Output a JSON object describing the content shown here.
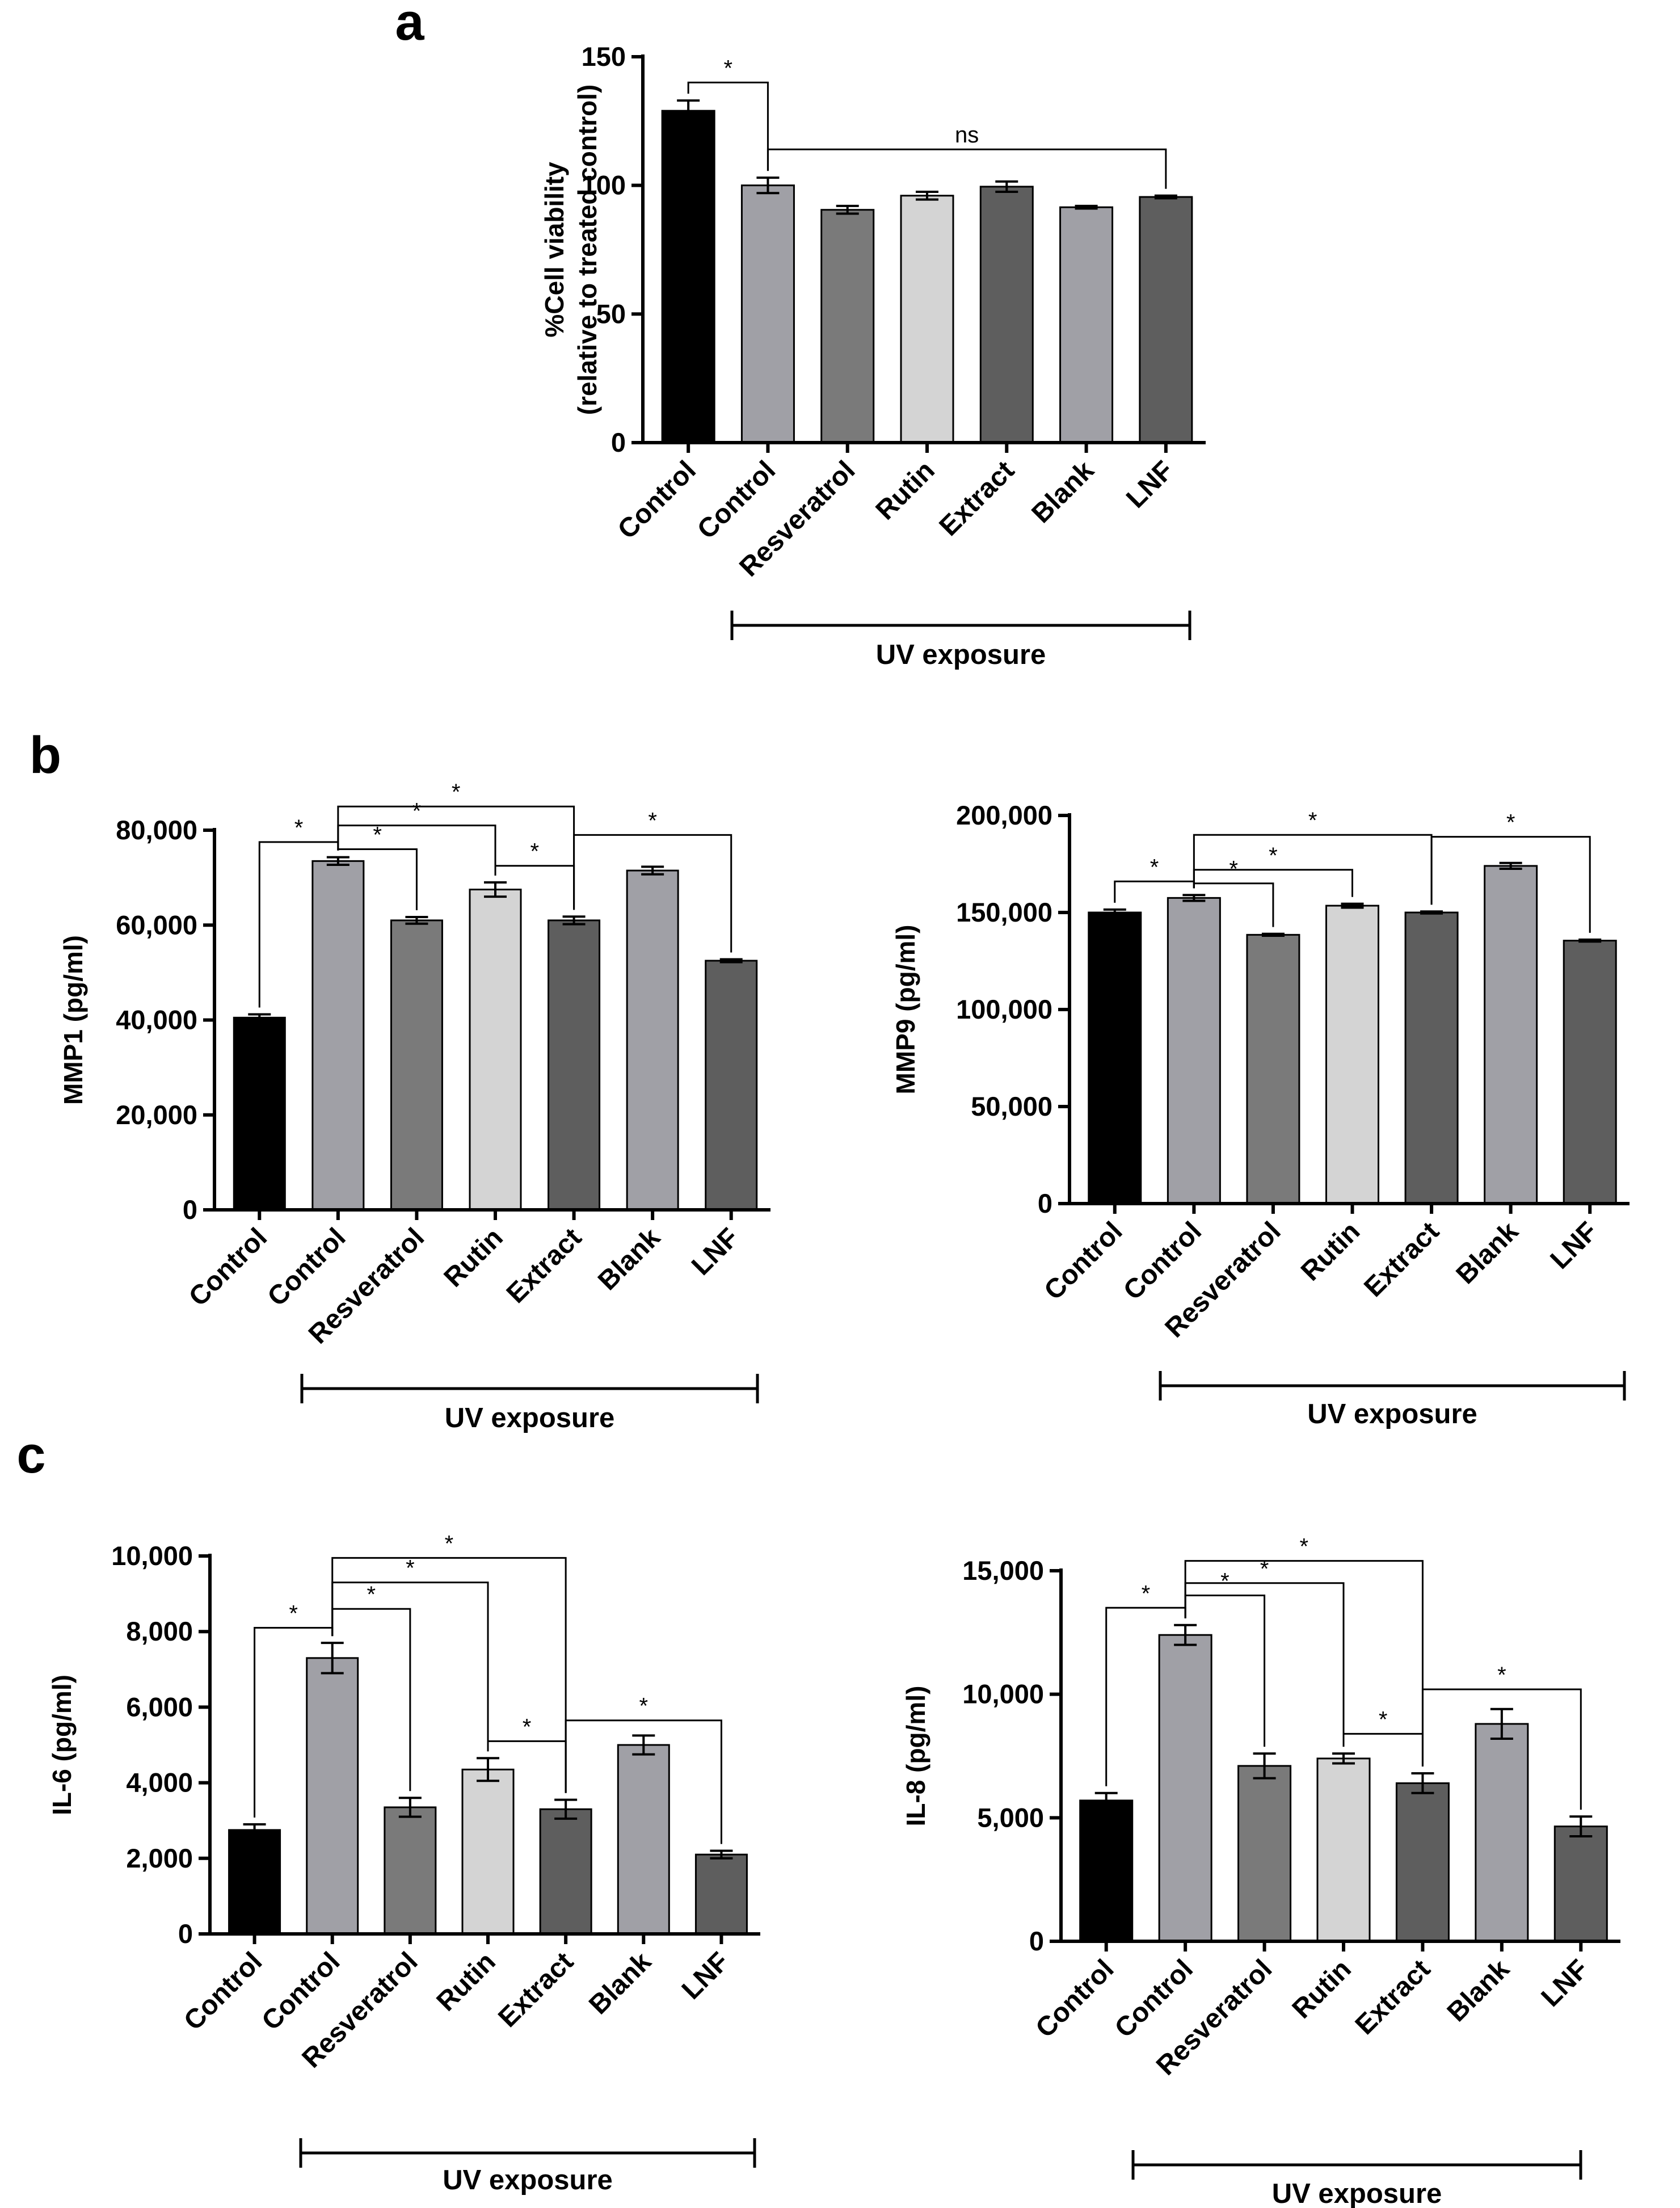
{
  "panel_labels": [
    "a",
    "b",
    "c"
  ],
  "group_label": "UV exposure",
  "colors": {
    "Control": "#000000",
    "UV Control": "#a0a0a6",
    "Resveratrol": "#7a7a7a",
    "Rutin": "#d4d4d4",
    "Extract": "#5e5e5e",
    "Blank": "#a0a0a6",
    "LNF": "#5e5e5e"
  },
  "chart_data": [
    {
      "id": "a",
      "type": "bar",
      "categories": [
        "Control",
        "Control",
        "Resveratrol",
        "Rutin",
        "Extract",
        "Blank",
        "LNF"
      ],
      "values": [
        129,
        100,
        90.5,
        96,
        99.5,
        91.5,
        95.5
      ],
      "errors": [
        4,
        3,
        1.5,
        1.5,
        2,
        0.5,
        0.5
      ],
      "title": "",
      "ylabel_lines": [
        "%Cell viability",
        "(relative to treated control)"
      ],
      "ylim": [
        0,
        150
      ],
      "yticks": [
        0,
        50,
        100,
        150
      ],
      "ytick_labels": [
        "0",
        "50",
        "100",
        "150"
      ],
      "group_span": [
        1,
        6
      ],
      "annotations": [
        {
          "from": 0,
          "to": 1,
          "label": "*",
          "y": 140
        },
        {
          "from": 1,
          "to": 6,
          "label": "ns",
          "y": 114
        }
      ]
    },
    {
      "id": "b1",
      "type": "bar",
      "categories": [
        "Control",
        "Control",
        "Resveratrol",
        "Rutin",
        "Extract",
        "Blank",
        "LNF"
      ],
      "values": [
        40500,
        73500,
        61000,
        67500,
        61000,
        71500,
        52500
      ],
      "errors": [
        700,
        800,
        700,
        1500,
        800,
        800,
        300
      ],
      "title": "",
      "ylabel_lines": [
        "MMP1 (pg/ml)"
      ],
      "ylim": [
        0,
        80000
      ],
      "yticks": [
        0,
        20000,
        40000,
        60000,
        80000
      ],
      "ytick_labels": [
        "0",
        "20,000",
        "40,000",
        "60,000",
        "80,000"
      ],
      "group_span": [
        1,
        6
      ],
      "annotations": [
        {
          "from": 0,
          "to": 1,
          "label": "*",
          "y": 77500
        },
        {
          "from": 1,
          "to": 2,
          "label": "*",
          "y": 76000
        },
        {
          "from": 1,
          "to": 3,
          "label": "*",
          "y": 81000
        },
        {
          "from": 1,
          "to": 4,
          "label": "*",
          "y": 85000
        },
        {
          "from": 3,
          "to": 4,
          "label": "*",
          "y": 72500
        },
        {
          "from": 4,
          "to": 6,
          "label": "*",
          "y": 79000
        }
      ]
    },
    {
      "id": "b2",
      "type": "bar",
      "categories": [
        "Control",
        "Control",
        "Resveratrol",
        "Rutin",
        "Extract",
        "Blank",
        "LNF"
      ],
      "values": [
        150000,
        157500,
        138500,
        153500,
        150000,
        174000,
        135500
      ],
      "errors": [
        1500,
        1500,
        500,
        1000,
        500,
        1500,
        500
      ],
      "title": "",
      "ylabel_lines": [
        "MMP9 (pg/ml)"
      ],
      "ylim": [
        0,
        200000
      ],
      "yticks": [
        0,
        50000,
        100000,
        150000,
        200000
      ],
      "ytick_labels": [
        "0",
        "50,000",
        "100,000",
        "150,000",
        "200,000"
      ],
      "group_span": [
        1,
        6
      ],
      "annotations": [
        {
          "from": 0,
          "to": 1,
          "label": "*",
          "y": 166000
        },
        {
          "from": 1,
          "to": 2,
          "label": "*",
          "y": 165000
        },
        {
          "from": 1,
          "to": 3,
          "label": "*",
          "y": 172000
        },
        {
          "from": 1,
          "to": 4,
          "label": "*",
          "y": 190000
        },
        {
          "from": 4,
          "to": 6,
          "label": "*",
          "y": 189000
        }
      ]
    },
    {
      "id": "c1",
      "type": "bar",
      "categories": [
        "Control",
        "Control",
        "Resveratrol",
        "Rutin",
        "Extract",
        "Blank",
        "LNF"
      ],
      "values": [
        2750,
        7300,
        3350,
        4350,
        3300,
        5000,
        2100
      ],
      "errors": [
        150,
        400,
        250,
        300,
        250,
        250,
        100
      ],
      "title": "",
      "ylabel_lines": [
        "IL-6 (pg/ml)"
      ],
      "ylim": [
        0,
        10000
      ],
      "yticks": [
        0,
        2000,
        4000,
        6000,
        8000,
        10000
      ],
      "ytick_labels": [
        "0",
        "2,000",
        "4,000",
        "6,000",
        "8,000",
        "10,000"
      ],
      "group_span": [
        1,
        6
      ],
      "annotations": [
        {
          "from": 0,
          "to": 1,
          "label": "*",
          "y": 8100
        },
        {
          "from": 1,
          "to": 2,
          "label": "*",
          "y": 8600
        },
        {
          "from": 1,
          "to": 3,
          "label": "*",
          "y": 9300
        },
        {
          "from": 1,
          "to": 4,
          "label": "*",
          "y": 9950
        },
        {
          "from": 3,
          "to": 4,
          "label": "*",
          "y": 5100
        },
        {
          "from": 4,
          "to": 6,
          "label": "*",
          "y": 5650
        }
      ]
    },
    {
      "id": "c2",
      "type": "bar",
      "categories": [
        "Control",
        "Control",
        "Resveratrol",
        "Rutin",
        "Extract",
        "Blank",
        "LNF"
      ],
      "values": [
        5700,
        12400,
        7100,
        7400,
        6400,
        8800,
        4650
      ],
      "errors": [
        300,
        400,
        500,
        200,
        400,
        600,
        400
      ],
      "title": "",
      "ylabel_lines": [
        "IL-8 (pg/ml)"
      ],
      "ylim": [
        0,
        15000
      ],
      "yticks": [
        0,
        5000,
        10000,
        15000
      ],
      "ytick_labels": [
        "0",
        "5,000",
        "10,000",
        "15,000"
      ],
      "group_span": [
        1,
        6
      ],
      "annotations": [
        {
          "from": 0,
          "to": 1,
          "label": "*",
          "y": 13500
        },
        {
          "from": 1,
          "to": 2,
          "label": "*",
          "y": 14000
        },
        {
          "from": 1,
          "to": 3,
          "label": "*",
          "y": 14500
        },
        {
          "from": 1,
          "to": 4,
          "label": "*",
          "y": 15400
        },
        {
          "from": 3,
          "to": 4,
          "label": "*",
          "y": 8400
        },
        {
          "from": 4,
          "to": 6,
          "label": "*",
          "y": 10200
        }
      ]
    }
  ]
}
